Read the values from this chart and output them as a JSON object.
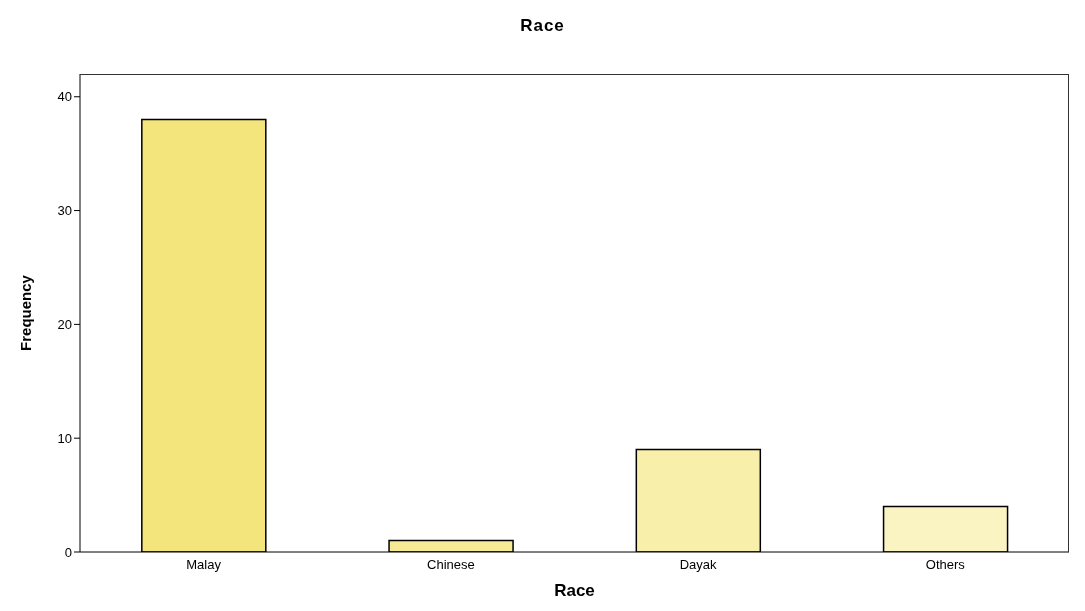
{
  "chart_data": {
    "type": "bar",
    "title": "Race",
    "xlabel": "Race",
    "ylabel": "Frequency",
    "categories": [
      "Malay",
      "Chinese",
      "Dayak",
      "Others"
    ],
    "values": [
      38,
      1,
      9,
      4
    ],
    "colors": [
      "#f3e47c",
      "#f6ea95",
      "#f8efaa",
      "#faf3c2"
    ],
    "ylim": [
      0,
      42
    ],
    "yticks": [
      0,
      10,
      20,
      30,
      40
    ]
  }
}
